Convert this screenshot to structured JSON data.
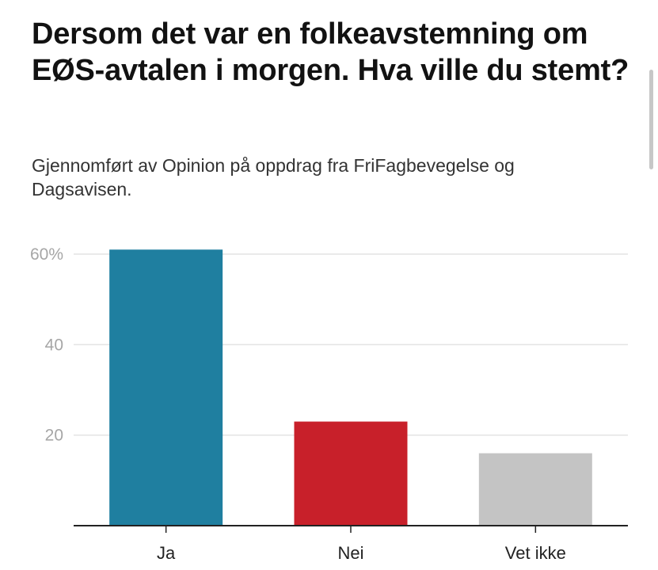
{
  "title": "Dersom det var en folkeavstemning om EØS-avtalen i morgen. Hva ville du stemt?",
  "subtitle": "Gjennomført av Opinion på oppdrag fra FriFagbevegelse og Dagsavisen.",
  "chart_data": {
    "type": "bar",
    "categories": [
      "Ja",
      "Nei",
      "Vet ikke"
    ],
    "values": [
      61,
      23,
      16
    ],
    "colors": [
      "#1f7fa0",
      "#c8202a",
      "#c4c4c4"
    ],
    "ylim": [
      0,
      60
    ],
    "yticks": [
      20,
      40,
      60
    ],
    "ytick_labels": [
      "20",
      "40",
      "60%"
    ],
    "grid": true
  }
}
